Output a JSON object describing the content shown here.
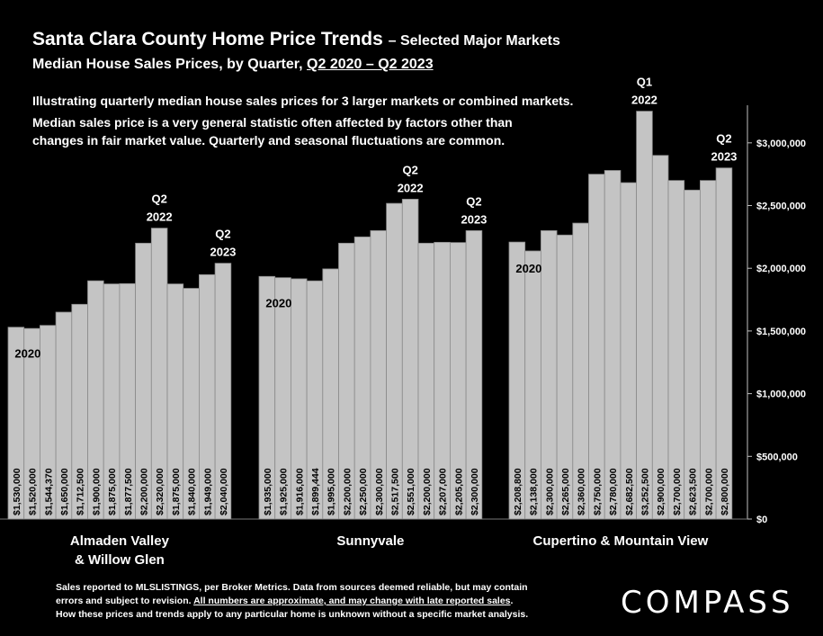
{
  "header": {
    "title": "Santa Clara County Home Price Trends",
    "title_suffix": "– Selected Major Markets",
    "subtitle_prefix": "Median House Sales Prices, by Quarter,",
    "subtitle_range": "Q2 2020 – Q2 2023"
  },
  "notes": {
    "line1": "Illustrating quarterly median house sales prices for 3 larger markets or combined markets.",
    "line2": "Median sales price is a very general statistic often affected by factors other than",
    "line3": "changes in fair market value. Quarterly and seasonal fluctuations are common."
  },
  "footer": {
    "line1": "Sales reported to MLSLISTINGS, per Broker Metrics. Data from sources deemed reliable, but may contain",
    "line2_a": "errors and subject to revision.",
    "line2_b": "All numbers are approximate, and may change with late reported sales",
    "line2_c": ".",
    "line3": "How these prices and trends apply to any particular home is unknown without a specific market analysis."
  },
  "logo": {
    "text": "COMPASS"
  },
  "colors": {
    "background": "#000000",
    "bar": "#c4c4c4",
    "bar_shadow": "#8a8a8a",
    "text": "#ffffff"
  },
  "chart_data": {
    "type": "bar",
    "ylim": [
      0,
      3300000
    ],
    "yticks": [
      0,
      500000,
      1000000,
      1500000,
      2000000,
      2500000,
      3000000
    ],
    "ytick_labels": [
      "$0",
      "$500,000",
      "$1,000,000",
      "$1,500,000",
      "$2,000,000",
      "$2,500,000",
      "$3,000,000"
    ],
    "y_axis_side": "right",
    "grid": false,
    "groups": [
      {
        "name_lines": [
          "Almaden Valley",
          "& Willow Glen"
        ],
        "values": [
          1530000,
          1520000,
          1544370,
          1650000,
          1712500,
          1900000,
          1875000,
          1877500,
          2200000,
          2320000,
          1875000,
          1840000,
          1949000,
          2040000
        ],
        "labels": [
          "$1,530,000",
          "$1,520,000",
          "$1,544,370",
          "$1,650,000",
          "$1,712,500",
          "$1,900,000",
          "$1,875,000",
          "$1,877,500",
          "$2,200,000",
          "$2,320,000",
          "$1,875,000",
          "$1,840,000",
          "$1,949,000",
          "$2,040,000"
        ],
        "annotations": [
          {
            "index": 0,
            "lines": [
              "2020"
            ],
            "placement": "inside"
          },
          {
            "index": 9,
            "lines": [
              "Q2",
              "2022"
            ],
            "placement": "above"
          },
          {
            "index": 13,
            "lines": [
              "Q2",
              "2023"
            ],
            "placement": "above"
          }
        ]
      },
      {
        "name_lines": [
          "Sunnyvale"
        ],
        "values": [
          1935000,
          1925000,
          1916000,
          1899444,
          1995000,
          2200000,
          2250000,
          2300000,
          2517500,
          2551000,
          2200000,
          2207000,
          2205000,
          2300000
        ],
        "labels": [
          "$1,935,000",
          "$1,925,000",
          "$1,916,000",
          "$1,899,444",
          "$1,995,000",
          "$2,200,000",
          "$2,250,000",
          "$2,300,000",
          "$2,517,500",
          "$2,551,000",
          "$2,200,000",
          "$2,207,000",
          "$2,205,000",
          "$2,300,000"
        ],
        "annotations": [
          {
            "index": 0,
            "lines": [
              "2020"
            ],
            "placement": "inside"
          },
          {
            "index": 9,
            "lines": [
              "Q2",
              "2022"
            ],
            "placement": "above"
          },
          {
            "index": 13,
            "lines": [
              "Q2",
              "2023"
            ],
            "placement": "above"
          }
        ]
      },
      {
        "name_lines": [
          "Cupertino & Mountain View"
        ],
        "values": [
          2208800,
          2138000,
          2300000,
          2265000,
          2360000,
          2750000,
          2780000,
          2682500,
          3252500,
          2900000,
          2700000,
          2623500,
          2700000,
          2800000
        ],
        "labels": [
          "$2,208,800",
          "$2,138,000",
          "$2,300,000",
          "$2,265,000",
          "$2,360,000",
          "$2,750,000",
          "$2,780,000",
          "$2,682,500",
          "$3,252,500",
          "$2,900,000",
          "$2,700,000",
          "$2,623,500",
          "$2,700,000",
          "$2,800,000"
        ],
        "annotations": [
          {
            "index": 0,
            "lines": [
              "2020"
            ],
            "placement": "inside"
          },
          {
            "index": 8,
            "lines": [
              "Q1",
              "2022"
            ],
            "placement": "above"
          },
          {
            "index": 13,
            "lines": [
              "Q2",
              "2023"
            ],
            "placement": "above"
          }
        ]
      }
    ]
  }
}
